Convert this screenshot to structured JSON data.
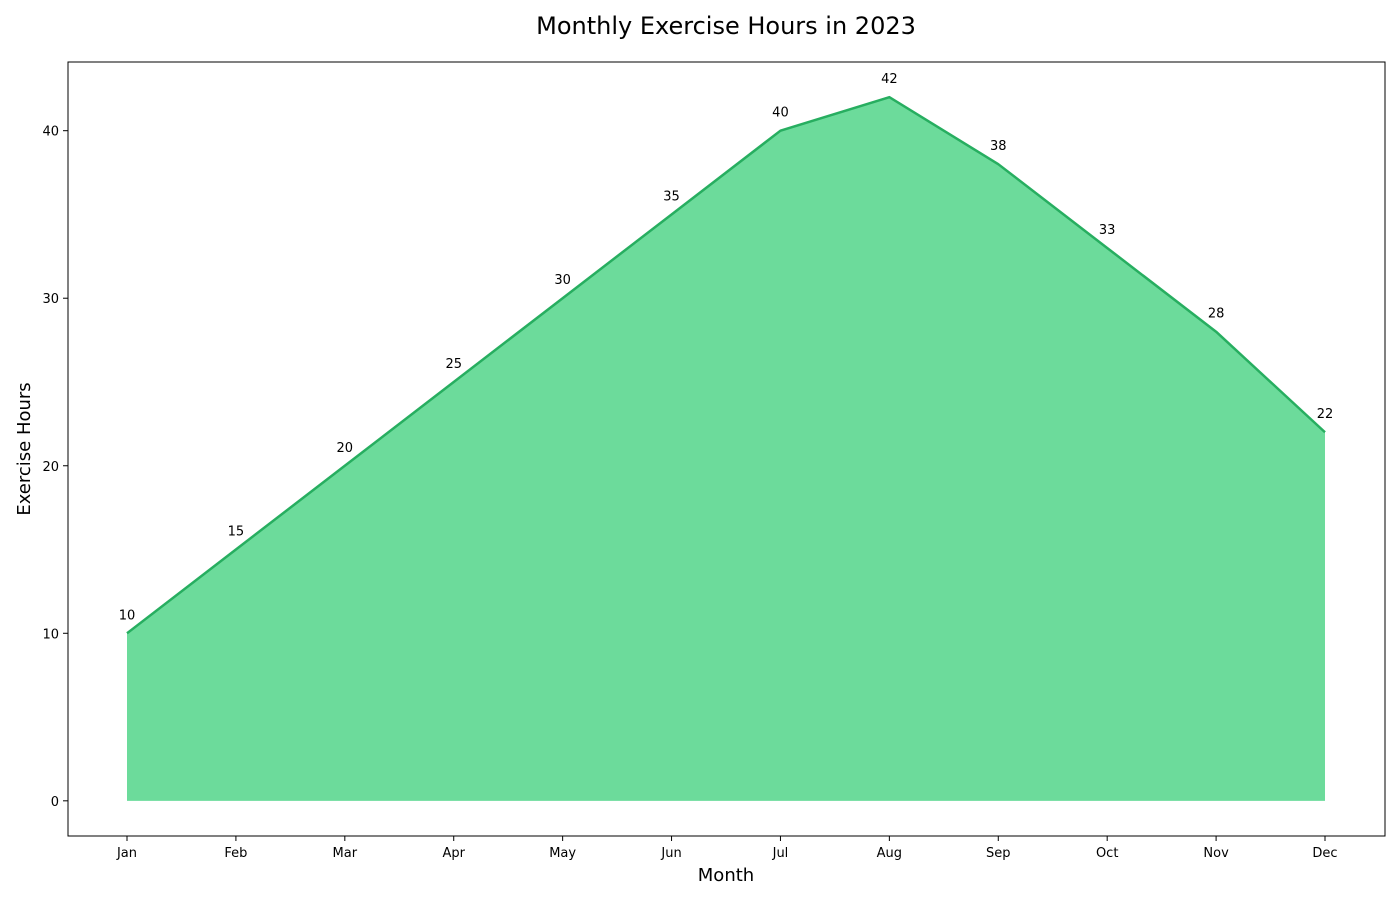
{
  "chart_data": {
    "type": "area",
    "title": "Monthly Exercise Hours in 2023",
    "xlabel": "Month",
    "ylabel": "Exercise Hours",
    "categories": [
      "Jan",
      "Feb",
      "Mar",
      "Apr",
      "May",
      "Jun",
      "Jul",
      "Aug",
      "Sep",
      "Oct",
      "Nov",
      "Dec"
    ],
    "values": [
      10,
      15,
      20,
      25,
      30,
      35,
      40,
      42,
      38,
      33,
      28,
      22
    ],
    "ylim": [
      -2.1,
      44.1
    ],
    "yticks": [
      0,
      10,
      20,
      30,
      40
    ],
    "grid": false,
    "data_labels": true,
    "colors": {
      "fill": "#2ecc71",
      "line": "#27ae60"
    }
  }
}
